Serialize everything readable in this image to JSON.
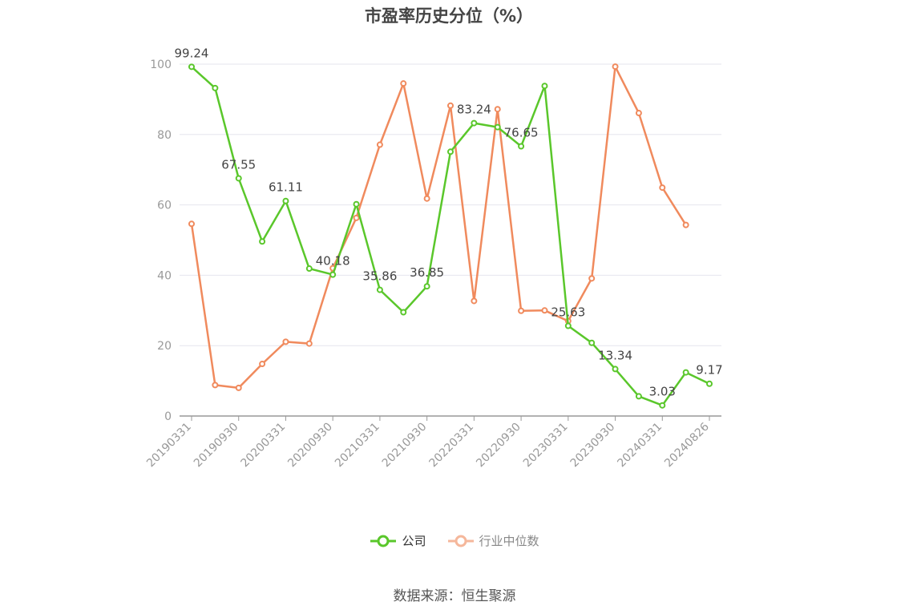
{
  "chart_data": {
    "type": "line",
    "title": "市盈率历史分位（%）",
    "xlabel": "",
    "ylabel": "",
    "ylim": [
      0,
      100
    ],
    "yticks": [
      0,
      20,
      40,
      60,
      80,
      100
    ],
    "x": [
      "20190331",
      "20190630",
      "20190930",
      "20191231",
      "20200331",
      "20200630",
      "20200930",
      "20201231",
      "20210331",
      "20210630",
      "20210930",
      "20211231",
      "20220331",
      "20220630",
      "20220930",
      "20221231",
      "20230331",
      "20230630",
      "20230930",
      "20231231",
      "20240331",
      "20240630",
      "20240826"
    ],
    "xtick_labels": [
      "20190331",
      "20190930",
      "20200331",
      "20200930",
      "20210331",
      "20210930",
      "20220331",
      "20220930",
      "20230331",
      "20230930",
      "20240331",
      "20240826"
    ],
    "grid": true,
    "legend_position": "bottom",
    "series": [
      {
        "name": "公司",
        "color": "#5ac72b",
        "values": [
          99.24,
          93.2,
          67.55,
          49.6,
          61.11,
          41.9,
          40.18,
          60.2,
          35.86,
          29.5,
          36.85,
          75.1,
          83.24,
          82.1,
          76.65,
          93.8,
          25.63,
          20.8,
          13.34,
          5.6,
          3.03,
          12.4,
          9.17
        ],
        "labels": {
          "0": "99.24",
          "2": "67.55",
          "4": "61.11",
          "6": "40.18",
          "8": "35.86",
          "10": "36.85",
          "12": "83.24",
          "14": "76.65",
          "16": "25.63",
          "18": "13.34",
          "20": "3.03",
          "22": "9.17"
        }
      },
      {
        "name": "行业中位数",
        "color": "#f08a5d",
        "values": [
          54.6,
          8.8,
          8.0,
          14.8,
          21.1,
          20.6,
          42.0,
          56.3,
          77.1,
          94.5,
          61.8,
          88.2,
          32.7,
          87.2,
          29.9,
          30.0,
          27.0,
          39.1,
          99.3,
          86.1,
          64.9,
          54.3,
          null
        ]
      }
    ]
  },
  "source": "数据来源：恒生聚源"
}
